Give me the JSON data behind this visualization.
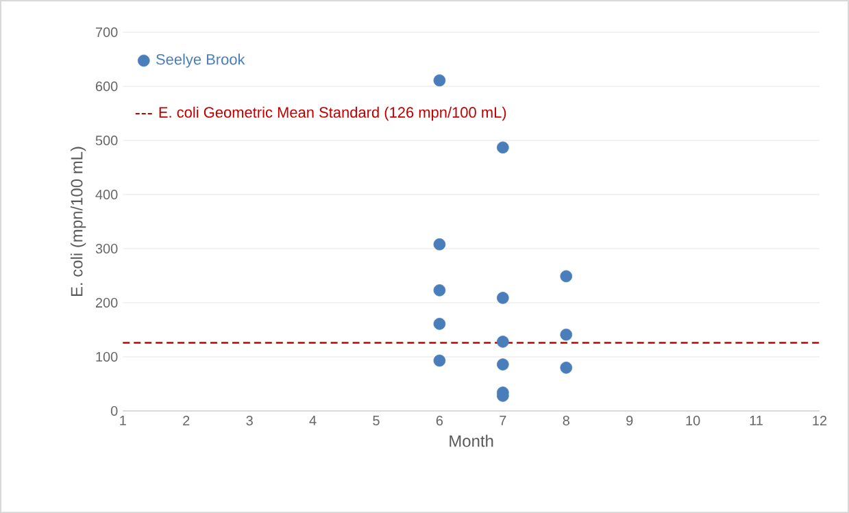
{
  "chart_data": {
    "type": "scatter",
    "xlabel": "Month",
    "ylabel": "E. coli (mpn/100 mL)",
    "series": [
      {
        "name": "Seelye Brook",
        "color": "#4a7ebb",
        "x": [
          6,
          6,
          6,
          6,
          6,
          7,
          7,
          7,
          7,
          7,
          7,
          8,
          8,
          8
        ],
        "values": [
          611,
          308,
          223,
          161,
          93,
          487,
          209,
          128,
          86,
          34,
          28,
          249,
          141,
          80
        ]
      }
    ],
    "ref_lines": [
      {
        "axis": "y",
        "value": 126,
        "label": "E. coli Geometric Mean Standard (126 mpn/100 mL)",
        "color": "#c00000",
        "line_style": "dashed"
      }
    ],
    "xlim": [
      1,
      12
    ],
    "ylim": [
      0,
      700
    ],
    "xticks": [
      1,
      2,
      3,
      4,
      5,
      6,
      7,
      8,
      9,
      10,
      11,
      12
    ],
    "yticks": [
      0,
      100,
      200,
      300,
      400,
      500,
      600,
      700
    ],
    "grid": "y",
    "legend": "top left",
    "marker": "circle"
  }
}
